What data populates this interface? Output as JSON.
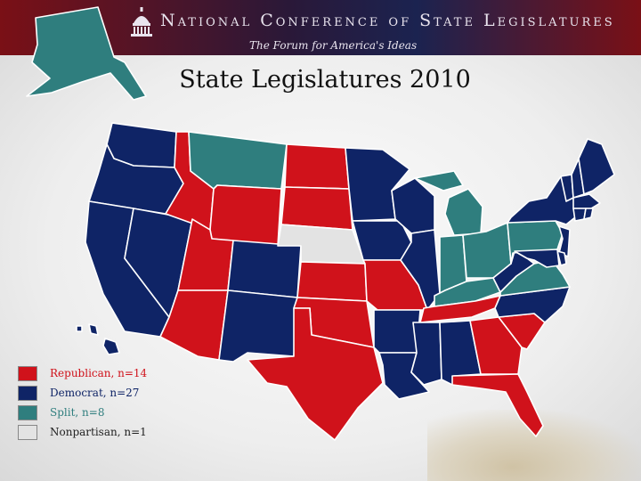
{
  "header": {
    "org_name": "National Conference of State Legislatures",
    "tagline": "The Forum for America's Ideas",
    "logo_icon": "capitol-dome-icon"
  },
  "title": "State Legislatures 2010",
  "colors": {
    "republican": "#d0121b",
    "democrat": "#0f2466",
    "split": "#2f7e7e",
    "nonpartisan": "#e3e3e3"
  },
  "legend": [
    {
      "party": "republican",
      "label": "Republican, n=14"
    },
    {
      "party": "democrat",
      "label": "Democrat, n=27"
    },
    {
      "party": "split",
      "label": "Split, n=8"
    },
    {
      "party": "nonpartisan",
      "label": "Nonpartisan, n=1"
    }
  ],
  "states": [
    {
      "code": "WA",
      "party": "democrat"
    },
    {
      "code": "OR",
      "party": "democrat"
    },
    {
      "code": "CA",
      "party": "democrat"
    },
    {
      "code": "NV",
      "party": "democrat"
    },
    {
      "code": "ID",
      "party": "republican"
    },
    {
      "code": "MT",
      "party": "split"
    },
    {
      "code": "WY",
      "party": "republican"
    },
    {
      "code": "UT",
      "party": "republican"
    },
    {
      "code": "AZ",
      "party": "republican"
    },
    {
      "code": "CO",
      "party": "democrat"
    },
    {
      "code": "NM",
      "party": "democrat"
    },
    {
      "code": "ND",
      "party": "republican"
    },
    {
      "code": "SD",
      "party": "republican"
    },
    {
      "code": "NE",
      "party": "nonpartisan"
    },
    {
      "code": "KS",
      "party": "republican"
    },
    {
      "code": "OK",
      "party": "republican"
    },
    {
      "code": "TX",
      "party": "republican"
    },
    {
      "code": "MN",
      "party": "democrat"
    },
    {
      "code": "IA",
      "party": "democrat"
    },
    {
      "code": "MO",
      "party": "republican"
    },
    {
      "code": "AR",
      "party": "democrat"
    },
    {
      "code": "LA",
      "party": "democrat"
    },
    {
      "code": "WI",
      "party": "democrat"
    },
    {
      "code": "IL",
      "party": "democrat"
    },
    {
      "code": "MI",
      "party": "split"
    },
    {
      "code": "IN",
      "party": "split"
    },
    {
      "code": "OH",
      "party": "split"
    },
    {
      "code": "KY",
      "party": "split"
    },
    {
      "code": "TN",
      "party": "republican"
    },
    {
      "code": "MS",
      "party": "democrat"
    },
    {
      "code": "AL",
      "party": "democrat"
    },
    {
      "code": "GA",
      "party": "republican"
    },
    {
      "code": "FL",
      "party": "republican"
    },
    {
      "code": "SC",
      "party": "republican"
    },
    {
      "code": "NC",
      "party": "democrat"
    },
    {
      "code": "VA",
      "party": "split"
    },
    {
      "code": "WV",
      "party": "democrat"
    },
    {
      "code": "PA",
      "party": "split"
    },
    {
      "code": "NY",
      "party": "democrat"
    },
    {
      "code": "VT",
      "party": "democrat"
    },
    {
      "code": "NH",
      "party": "democrat"
    },
    {
      "code": "ME",
      "party": "democrat"
    },
    {
      "code": "MA",
      "party": "democrat"
    },
    {
      "code": "CT",
      "party": "democrat"
    },
    {
      "code": "RI",
      "party": "democrat"
    },
    {
      "code": "NJ",
      "party": "democrat"
    },
    {
      "code": "DE",
      "party": "democrat"
    },
    {
      "code": "MD",
      "party": "democrat"
    },
    {
      "code": "AK",
      "party": "split"
    },
    {
      "code": "HI",
      "party": "democrat"
    }
  ]
}
